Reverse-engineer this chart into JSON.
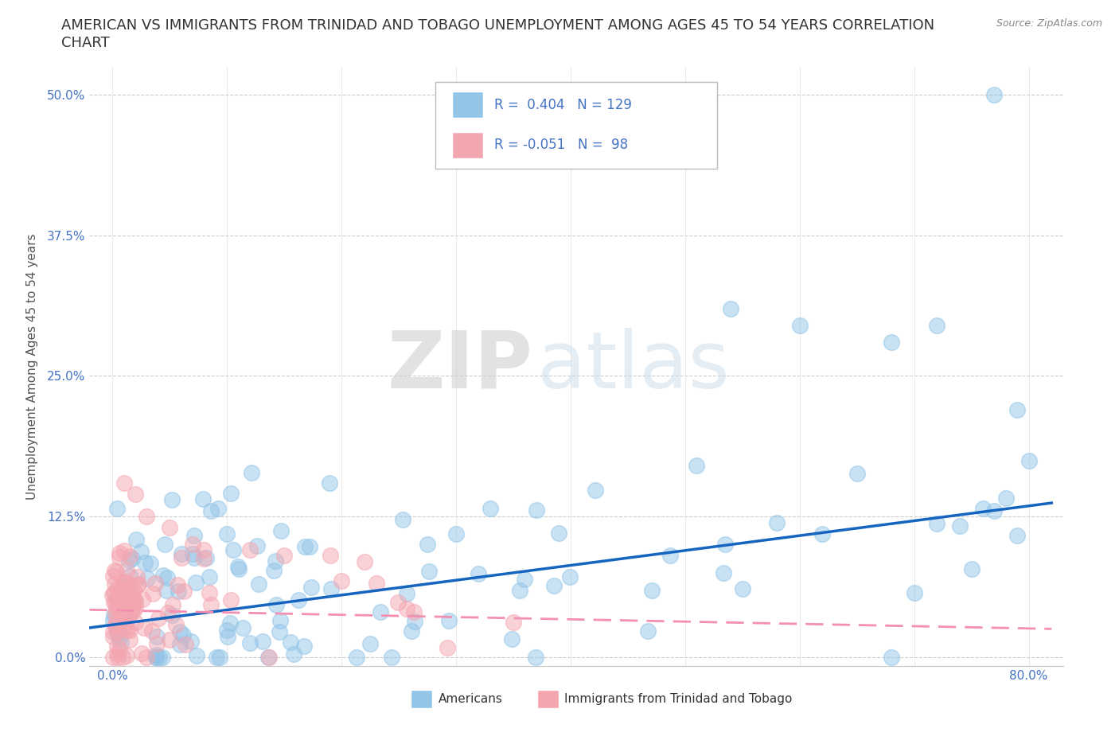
{
  "title_line1": "AMERICAN VS IMMIGRANTS FROM TRINIDAD AND TOBAGO UNEMPLOYMENT AMONG AGES 45 TO 54 YEARS CORRELATION",
  "title_line2": "CHART",
  "source": "Source: ZipAtlas.com",
  "xlim": [
    0.0,
    0.8
  ],
  "ylim": [
    -0.005,
    0.52
  ],
  "ylabel": "Unemployment Among Ages 45 to 54 years",
  "legend_label_1": "Americans",
  "legend_label_2": "Immigrants from Trinidad and Tobago",
  "R1": 0.404,
  "N1": 129,
  "R2": -0.051,
  "N2": 98,
  "color_americans": "#92C5E8",
  "color_immigrants": "#F4A6B0",
  "trendline_color_1": "#1565C0",
  "trendline_color_2": "#F48FB1",
  "background_color": "#ffffff",
  "watermark_zip": "ZIP",
  "watermark_atlas": "atlas",
  "title_fontsize": 13,
  "axis_label_fontsize": 11,
  "tick_fontsize": 11,
  "tick_color": "#4472C4",
  "text_color_dark": "#333333",
  "source_color": "#888888"
}
